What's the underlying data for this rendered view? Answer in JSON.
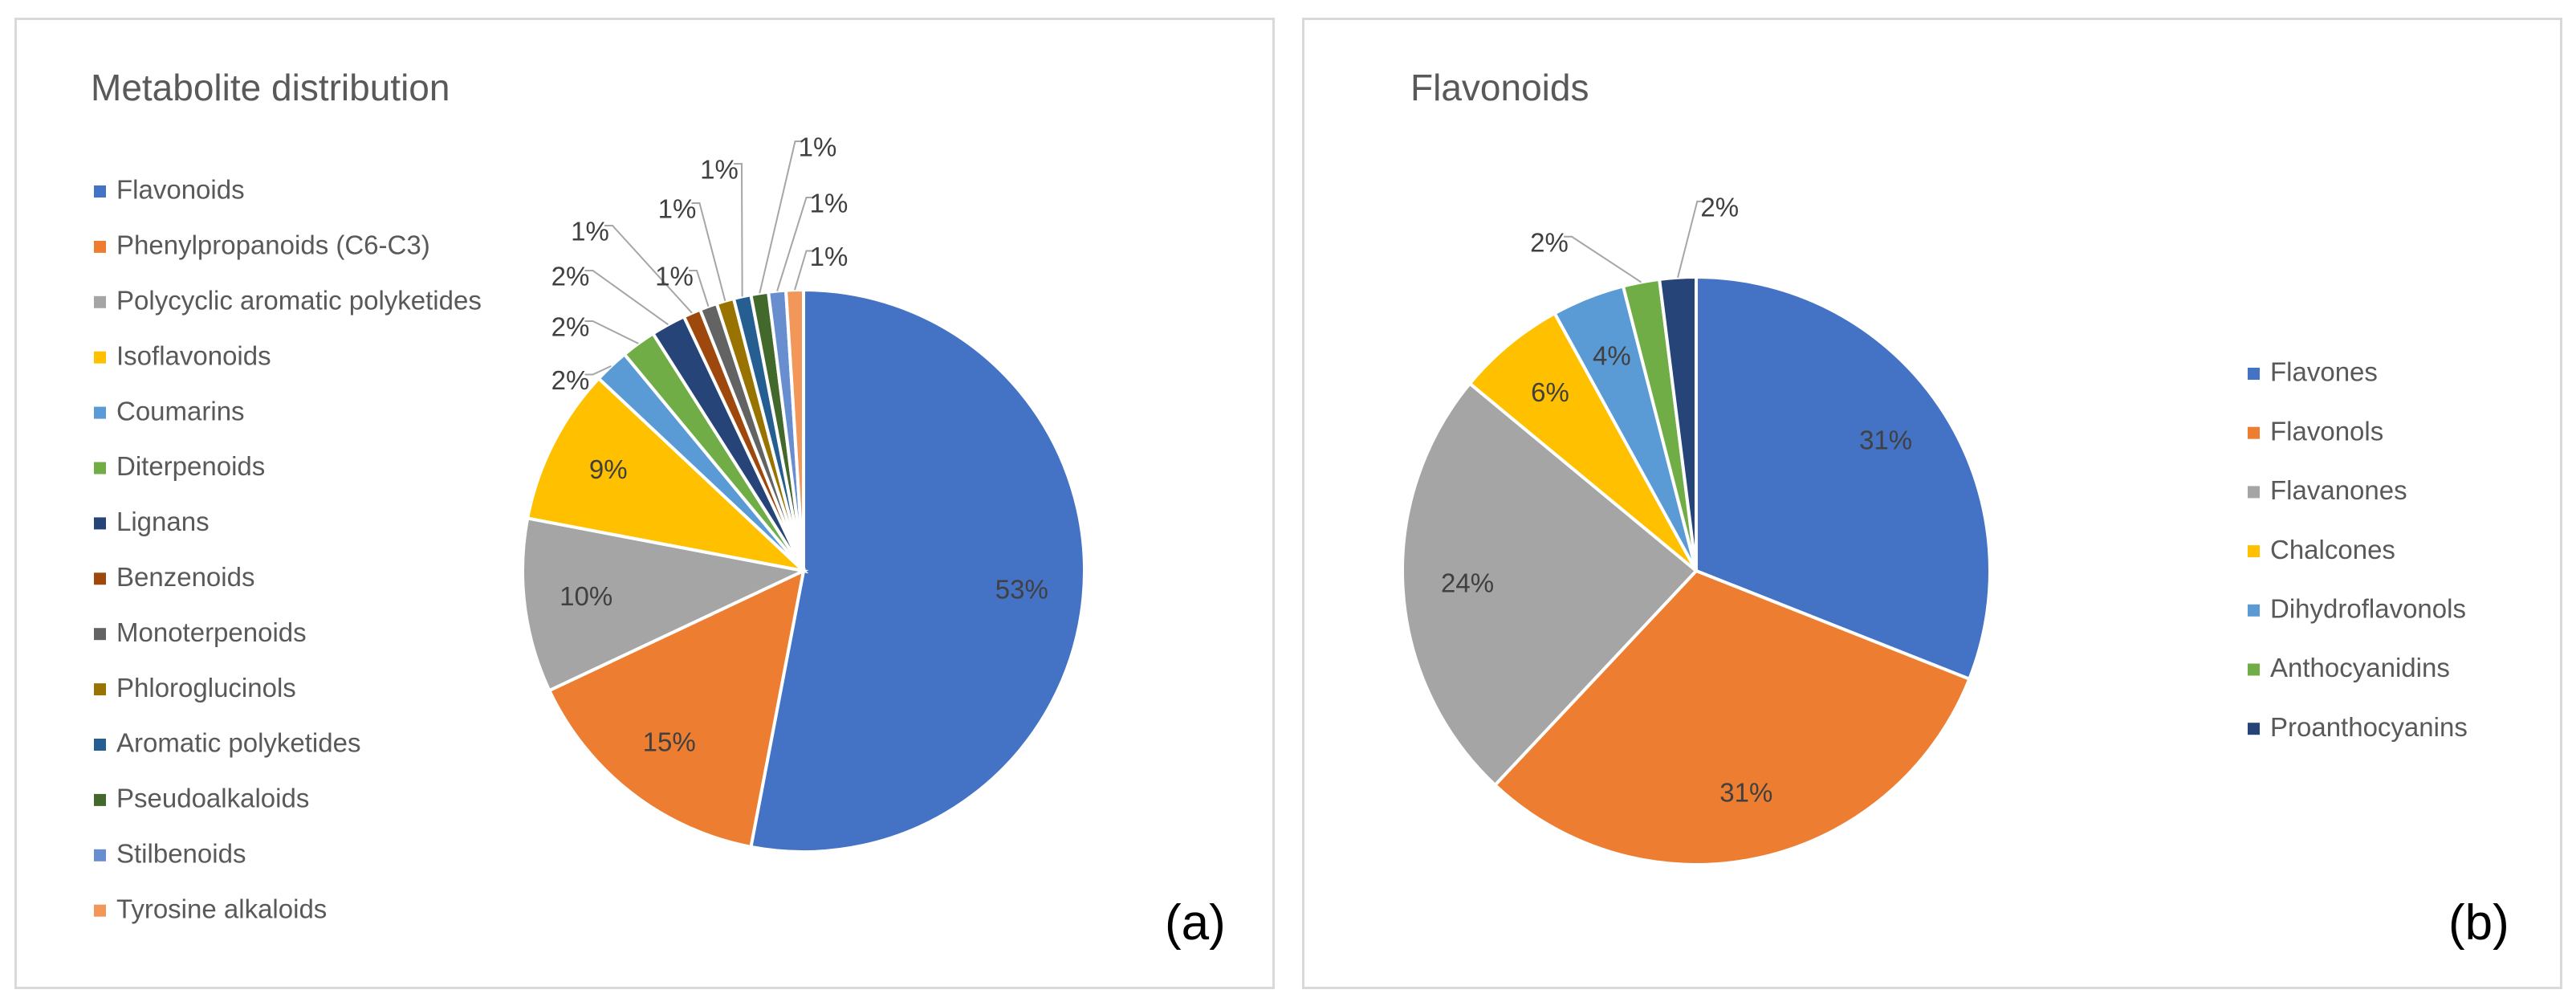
{
  "chart_data": [
    {
      "type": "pie",
      "title": "Metabolite distribution",
      "panel_label": "(a)",
      "categories": [
        "Flavonoids",
        "Phenylpropanoids (C6-C3)",
        "Polycyclic aromatic polyketides",
        "Isoflavonoids",
        "Coumarins",
        "Diterpenoids",
        "Lignans",
        "Benzenoids",
        "Monoterpenoids",
        "Phloroglucinols",
        "Aromatic polyketides",
        "Pseudoalkaloids",
        "Stilbenoids",
        "Tyrosine alkaloids"
      ],
      "values": [
        53,
        15,
        10,
        9,
        2,
        2,
        2,
        1,
        1,
        1,
        1,
        1,
        1,
        1
      ],
      "labels": [
        "53%",
        "15%",
        "10%",
        "9%",
        "2%",
        "2%",
        "2%",
        "1%",
        "1%",
        "1%",
        "1%",
        "1%",
        "1%",
        "1%"
      ],
      "colors": [
        "#4472C4",
        "#ED7D31",
        "#A5A5A5",
        "#FFC000",
        "#5B9BD5",
        "#70AD47",
        "#264478",
        "#9E480E",
        "#636363",
        "#997300",
        "#255E91",
        "#43682B",
        "#698ED0",
        "#F1975A"
      ],
      "legend_position": "left"
    },
    {
      "type": "pie",
      "title": "Flavonoids",
      "panel_label": "(b)",
      "categories": [
        "Flavones",
        "Flavonols",
        "Flavanones",
        "Chalcones",
        "Dihydroflavonols",
        "Anthocyanidins",
        "Proanthocyanins"
      ],
      "values": [
        31,
        31,
        24,
        6,
        4,
        2,
        2
      ],
      "labels": [
        "31%",
        "31%",
        "24%",
        "6%",
        "4%",
        "2%",
        "2%"
      ],
      "colors": [
        "#4472C4",
        "#ED7D31",
        "#A5A5A5",
        "#FFC000",
        "#5B9BD5",
        "#70AD47",
        "#264478"
      ],
      "legend_position": "right"
    }
  ]
}
